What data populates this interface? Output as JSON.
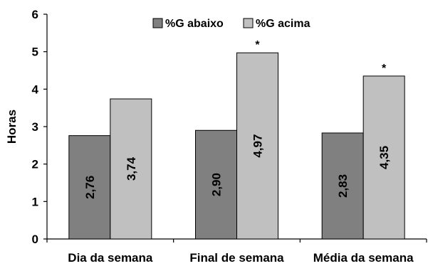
{
  "chart_data": {
    "type": "bar",
    "categories": [
      "Dia da semana",
      "Final de semana",
      "Média da semana"
    ],
    "series": [
      {
        "name": "%G abaixo",
        "values": [
          2.76,
          2.9,
          2.83
        ],
        "labels": [
          "2,76",
          "2,90",
          "2,83"
        ],
        "color": "#808080"
      },
      {
        "name": "%G acima",
        "values": [
          3.74,
          4.97,
          4.35
        ],
        "labels": [
          "3,74",
          "4,97",
          "4,35"
        ],
        "color": "#c0c0c0"
      }
    ],
    "annotations": [
      {
        "series": 1,
        "category": 1,
        "text": "*"
      },
      {
        "series": 1,
        "category": 2,
        "text": "*"
      }
    ],
    "ylabel": "Horas",
    "xlabel": "",
    "ylim": [
      0,
      6
    ],
    "yticks": [
      0,
      1,
      2,
      3,
      4,
      5,
      6
    ],
    "legend_position": "top-right",
    "grid": false
  }
}
